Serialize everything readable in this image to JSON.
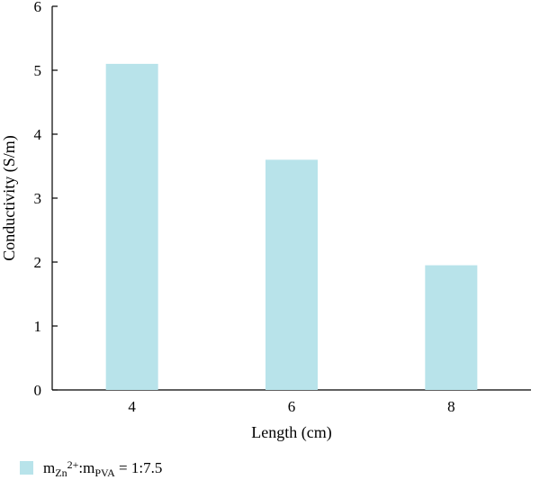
{
  "chart_data": {
    "type": "bar",
    "categories": [
      "4",
      "6",
      "8"
    ],
    "values": [
      5.1,
      3.6,
      1.95
    ],
    "xlabel": "Length (cm)",
    "ylabel": "Conductivity (S/m)",
    "ylim": [
      0,
      6
    ],
    "yticks": [
      "0",
      "1",
      "2",
      "3",
      "4",
      "5",
      "6"
    ],
    "bar_color": "#b8e3ea",
    "grid": false,
    "legend_position": "bottom-left",
    "legend": {
      "m1": "m",
      "sub1": "Zn",
      "sup1": "2+",
      "colon": ":",
      "m2": "m",
      "sub2": "PVA",
      "ratio": " = 1:7.5"
    }
  }
}
